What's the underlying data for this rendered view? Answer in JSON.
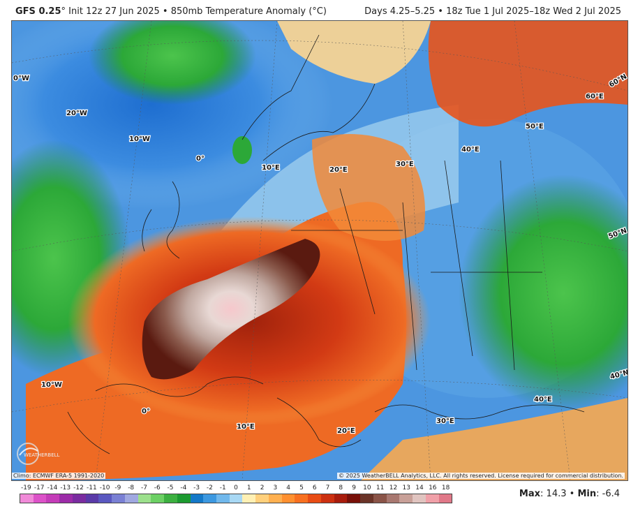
{
  "header": {
    "model": "GFS 0.25",
    "degree_mark": "°",
    "title": "Init 12z 27 Jun 2025 • 850mb Temperature Anomaly (°C)",
    "valid": "Days 4.25–5.25 • 18z Tue 1 Jul 2025–18z Wed 2 Jul 2025"
  },
  "map": {
    "graticule_labels": [
      "0°W",
      "20°W",
      "10°W",
      "0°",
      "10°E",
      "20°E",
      "30°E",
      "40°E",
      "50°E",
      "60°E",
      "60°N",
      "50°N",
      "40°N",
      "40°E",
      "30°E",
      "20°E",
      "10°E",
      "0°",
      "10°W"
    ],
    "logo_text": "WEATHERBELL"
  },
  "footer": {
    "climo": "Climo: ECMWF ERA-5 1991-2020",
    "copyright": "© 2025 WeatherBELL Analytics, LLC. All rights reserved. License required for commercial distribution.",
    "max_label": "Max",
    "max_value": "14.3",
    "separator": "•",
    "min_label": "Min",
    "min_value": "-6.4"
  },
  "colorbar": {
    "labels": [
      "-19",
      "-17",
      "-14",
      "-13",
      "-12",
      "-11",
      "-10",
      "-9",
      "-8",
      "-7",
      "-6",
      "-5",
      "-4",
      "-3",
      "-2",
      "-1",
      "0",
      "1",
      "2",
      "3",
      "4",
      "5",
      "6",
      "7",
      "8",
      "9",
      "10",
      "11",
      "12",
      "13",
      "14",
      "16",
      "18"
    ],
    "colors": [
      "#f08ad8",
      "#dc52c8",
      "#c43cb8",
      "#9c2ca8",
      "#7a2ca0",
      "#5a3aa8",
      "#5a58c0",
      "#7a80d4",
      "#a0a8e0",
      "#9ce08c",
      "#6cd064",
      "#3cb040",
      "#1c9a30",
      "#1478c8",
      "#3c98e0",
      "#70b8ec",
      "#a8d8f4",
      "#fff0b4",
      "#ffd07c",
      "#ffb050",
      "#ff9030",
      "#f87020",
      "#e84c14",
      "#cc3010",
      "#a81c0c",
      "#781008",
      "#6a3428",
      "#8a5448",
      "#a87870",
      "#c8a098",
      "#e0c4c0",
      "#f0a0a8",
      "#e07888"
    ],
    "ticks_count": 33
  },
  "icons": {
    "logo": "weatherbell-globe-icon"
  }
}
